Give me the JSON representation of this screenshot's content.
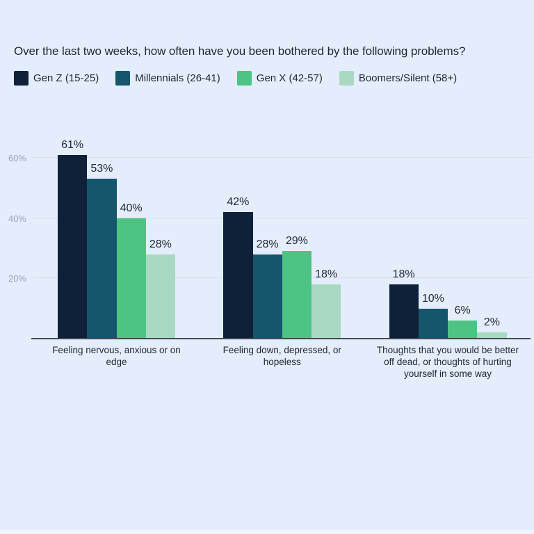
{
  "title": "Over the last two weeks, how often have you been bothered by the following problems?",
  "colors": {
    "background": "#e4edfb",
    "grid": "#d6ddea",
    "axis": "#454a55",
    "tick_label": "#9aa3b3",
    "text": "#1e2732"
  },
  "chart_data": {
    "type": "bar",
    "title": "Over the last two weeks, how often have you been bothered by the following problems?",
    "categories": [
      "Feeling nervous, anxious or on edge",
      "Feeling down, depressed, or hopeless",
      "Thoughts that you would be better off dead, or thoughts of hurting yourself in some way"
    ],
    "series": [
      {
        "name": "Gen Z (15-25)",
        "color": "#0e2139",
        "values": [
          61,
          42,
          18
        ]
      },
      {
        "name": "Millennials (26-41)",
        "color": "#15566d",
        "values": [
          53,
          28,
          10
        ]
      },
      {
        "name": "Gen X (42-57)",
        "color": "#4ec484",
        "values": [
          40,
          29,
          6
        ]
      },
      {
        "name": "Boomers/Silent (58+)",
        "color": "#aad9c3",
        "values": [
          28,
          18,
          2
        ]
      }
    ],
    "value_suffix": "%",
    "y_ticks": [
      20,
      40,
      60
    ],
    "y_tick_labels": [
      "20%",
      "40%",
      "60%"
    ],
    "ylim": [
      0,
      68
    ],
    "grid": true,
    "legend_position": "top-left",
    "value_labels": "above-bars"
  }
}
